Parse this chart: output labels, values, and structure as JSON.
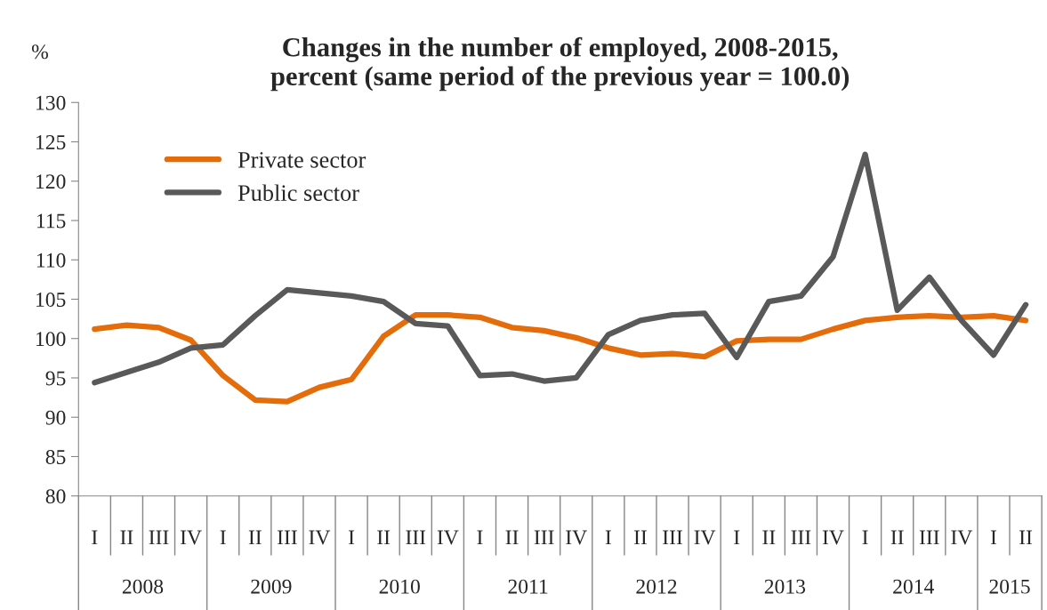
{
  "chart_data": {
    "type": "line",
    "title": "Changes in the number of employed, 2008-2015,\npercent (same period of the previous year = 100.0)",
    "ylabel": "%",
    "categories": [
      "I",
      "II",
      "III",
      "IV",
      "I",
      "II",
      "III",
      "IV",
      "I",
      "II",
      "III",
      "IV",
      "I",
      "II",
      "III",
      "IV",
      "I",
      "II",
      "III",
      "IV",
      "I",
      "II",
      "III",
      "IV",
      "I",
      "II",
      "III",
      "IV",
      "I",
      "II"
    ],
    "annotations": [
      "2008",
      "2009",
      "2010",
      "2011",
      "2012",
      "2013",
      "2014",
      "2015"
    ],
    "series": [
      {
        "name": "Private sector",
        "color": "#e46c0a",
        "values": [
          101.2,
          101.7,
          101.4,
          99.8,
          95.3,
          92.2,
          92.0,
          93.8,
          94.8,
          100.3,
          103.0,
          103.0,
          102.7,
          101.4,
          101.0,
          100.1,
          98.8,
          97.9,
          98.1,
          97.7,
          99.7,
          99.9,
          99.9,
          101.2,
          102.3,
          102.7,
          102.9,
          102.7,
          102.9,
          102.3
        ]
      },
      {
        "name": "Public sector",
        "color": "#595959",
        "values": [
          94.4,
          95.7,
          97.0,
          98.8,
          99.2,
          102.9,
          106.2,
          105.8,
          105.4,
          104.7,
          101.9,
          101.6,
          95.3,
          95.5,
          94.6,
          95.0,
          100.5,
          102.3,
          103.0,
          103.2,
          97.6,
          104.7,
          105.4,
          110.4,
          123.4,
          103.6,
          107.8,
          102.3,
          97.9,
          104.3
        ]
      }
    ],
    "ylim": [
      80,
      130
    ],
    "yticks": [
      80,
      85,
      90,
      95,
      100,
      105,
      110,
      115,
      120,
      125,
      130
    ],
    "legend": "top left",
    "grid": false,
    "line_style": "solid"
  }
}
